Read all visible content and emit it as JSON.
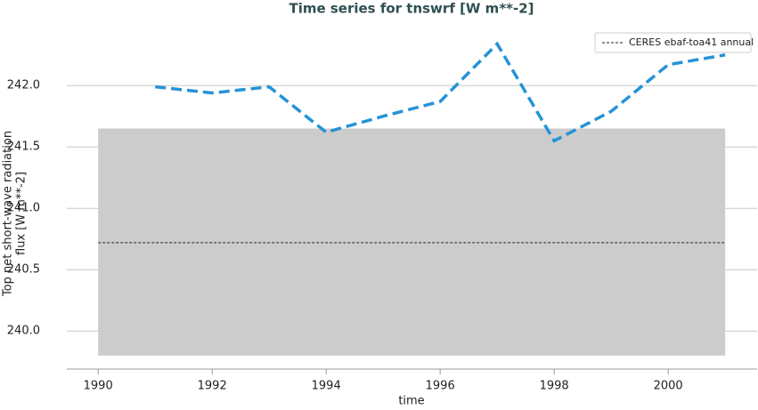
{
  "chart_data": {
    "type": "line",
    "title": "Time series for tnswrf [W m**-2]",
    "xlabel": "time",
    "ylabel": [
      "Top net short-wave radiation",
      "flux [W m**-2]"
    ],
    "x": [
      1991,
      1992,
      1993,
      1994,
      1995,
      1996,
      1997,
      1998,
      1999,
      2000,
      2001
    ],
    "series": [
      {
        "color": "#2693d6",
        "dash": true,
        "values": [
          241.99,
          241.94,
          241.99,
          241.62,
          241.75,
          241.87,
          242.34,
          241.55,
          241.79,
          242.17,
          242.25
        ]
      }
    ],
    "reference": {
      "name": "CERES ebaf-toa41 annual",
      "value": 240.72,
      "band": [
        239.8,
        241.65
      ],
      "x": [
        1990,
        2001
      ],
      "color": "#222222",
      "band_color": "#cccccc"
    },
    "xlim": [
      1989.45,
      2001.56
    ],
    "ylim": [
      239.69,
      242.48
    ],
    "xticks": [
      1990,
      1992,
      1994,
      1996,
      1998,
      2000
    ],
    "yticks": [
      {
        "value": 240.0,
        "label": "240.0"
      },
      {
        "value": 240.5,
        "label": "240.5"
      },
      {
        "value": 241.0,
        "label": "241.0"
      },
      {
        "value": 241.5,
        "label": "241.5"
      },
      {
        "value": 242.0,
        "label": "242.0"
      }
    ],
    "grid": true,
    "legend": "upper right"
  }
}
